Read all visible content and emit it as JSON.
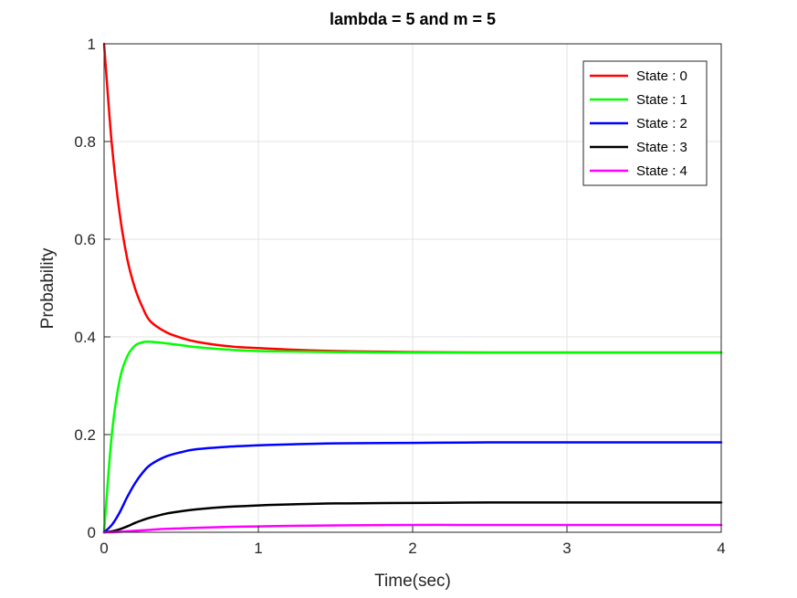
{
  "chart_data": {
    "type": "line",
    "title": "lambda =  5  and m =  5",
    "xlabel": "Time(sec)",
    "ylabel": "Probability",
    "xlim": [
      0,
      4
    ],
    "ylim": [
      0,
      1
    ],
    "xticks": [
      "0",
      "1",
      "2",
      "3",
      "4"
    ],
    "yticks": [
      "0",
      "0.2",
      "0.4",
      "0.6",
      "0.8",
      "1"
    ],
    "grid": true,
    "legend_position": "top-right",
    "x": [
      0,
      0.05,
      0.1,
      0.15,
      0.2,
      0.25,
      0.3,
      0.4,
      0.5,
      0.6,
      0.8,
      1.0,
      1.2,
      1.5,
      2.0,
      2.5,
      3.0,
      3.5,
      4.0
    ],
    "series": [
      {
        "name": "State : 0",
        "color": "#ff0000",
        "values": [
          1.0,
          0.795,
          0.655,
          0.56,
          0.5,
          0.46,
          0.432,
          0.41,
          0.398,
          0.39,
          0.381,
          0.377,
          0.374,
          0.371,
          0.369,
          0.368,
          0.368,
          0.368,
          0.368
        ]
      },
      {
        "name": "State : 1",
        "color": "#00ff00",
        "values": [
          0.0,
          0.2,
          0.31,
          0.36,
          0.382,
          0.389,
          0.39,
          0.387,
          0.383,
          0.379,
          0.374,
          0.371,
          0.37,
          0.369,
          0.368,
          0.368,
          0.368,
          0.368,
          0.368
        ]
      },
      {
        "name": "State : 2",
        "color": "#0000ff",
        "values": [
          0.0,
          0.015,
          0.04,
          0.072,
          0.1,
          0.122,
          0.138,
          0.155,
          0.164,
          0.17,
          0.175,
          0.178,
          0.18,
          0.182,
          0.183,
          0.184,
          0.184,
          0.184,
          0.184
        ]
      },
      {
        "name": "State : 3",
        "color": "#000000",
        "values": [
          0.0,
          0.002,
          0.006,
          0.012,
          0.019,
          0.025,
          0.03,
          0.038,
          0.043,
          0.047,
          0.052,
          0.055,
          0.057,
          0.059,
          0.06,
          0.061,
          0.061,
          0.061,
          0.061
        ]
      },
      {
        "name": "State : 4",
        "color": "#ff00ff",
        "values": [
          0.0,
          0.0,
          0.001,
          0.002,
          0.003,
          0.004,
          0.005,
          0.007,
          0.008,
          0.009,
          0.011,
          0.012,
          0.013,
          0.014,
          0.015,
          0.015,
          0.015,
          0.015,
          0.015
        ]
      }
    ]
  }
}
